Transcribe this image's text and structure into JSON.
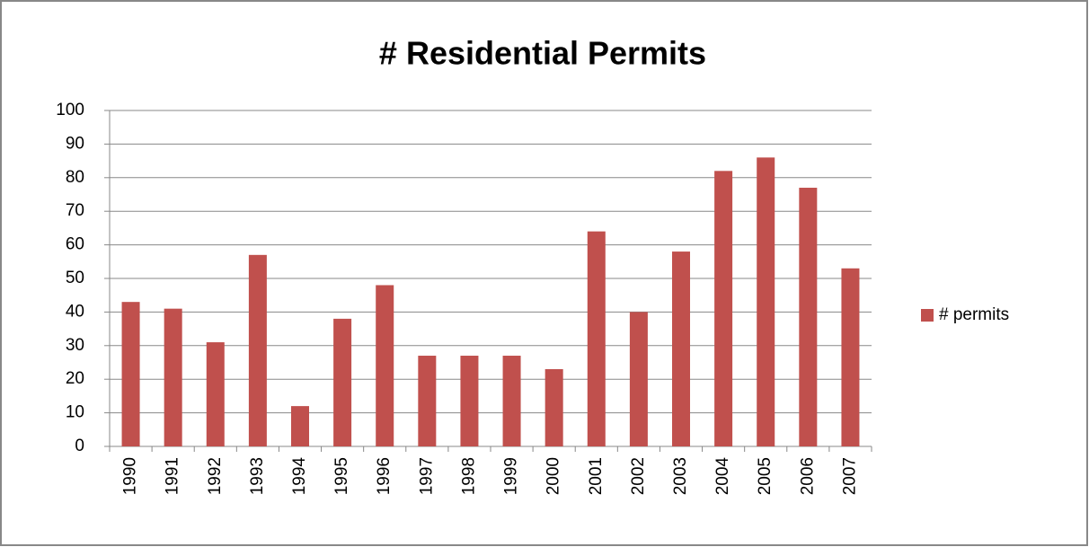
{
  "chart_data": {
    "type": "bar",
    "title": "# Residential Permits",
    "categories": [
      "1990",
      "1991",
      "1992",
      "1993",
      "1994",
      "1995",
      "1996",
      "1997",
      "1998",
      "1999",
      "2000",
      "2001",
      "2002",
      "2003",
      "2004",
      "2005",
      "2006",
      "2007"
    ],
    "series": [
      {
        "name": "# permits",
        "color": "#c0504d",
        "values": [
          43,
          41,
          31,
          57,
          12,
          38,
          48,
          27,
          27,
          27,
          23,
          64,
          40,
          58,
          82,
          86,
          77,
          53
        ]
      }
    ],
    "ylim": [
      0,
      100
    ],
    "yticks": [
      0,
      10,
      20,
      30,
      40,
      50,
      60,
      70,
      80,
      90,
      100
    ],
    "grid": true,
    "legend": "right"
  }
}
